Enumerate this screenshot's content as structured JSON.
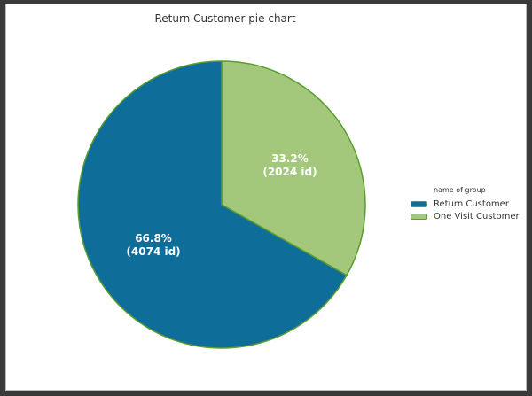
{
  "chart_data": {
    "type": "pie",
    "title": "Return Customer pie chart",
    "legend_title": "name of group",
    "legend_position": "right",
    "start_angle_deg": 90,
    "direction": "clockwise",
    "slices": [
      {
        "label": "One Visit Customer",
        "value": 2024,
        "percent_text": "33.2%",
        "count_text": "(2024 id)",
        "color": "#a3c87b",
        "edge_color": "#5a9e2e"
      },
      {
        "label": "Return Customer",
        "value": 4074,
        "percent_text": "66.8%",
        "count_text": "(4074 id)",
        "color": "#0e6e99",
        "edge_color": "#5a9e2e"
      }
    ],
    "legend_order": [
      "Return Customer",
      "One Visit Customer"
    ]
  }
}
